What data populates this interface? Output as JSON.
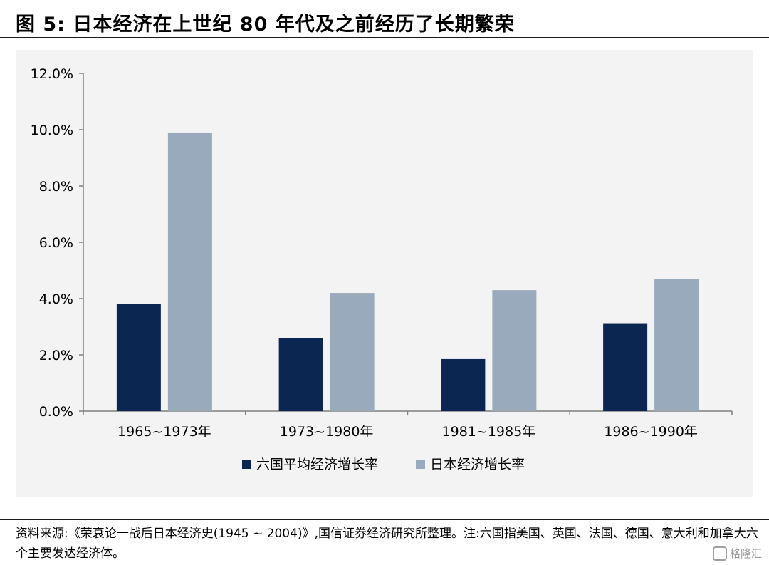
{
  "figure_title": "图 5:  日本经济在上世纪 80 年代及之前经历了长期繁荣",
  "source_note": "资料来源:《荣衰论一战后日本经济史(1945 ~ 2004)》,国信证券经济研究所整理。注:六国指美国、英国、法国、德国、意大利和加拿大六个主要发达经济体。",
  "watermark": "格隆汇",
  "colors": {
    "series_a": "#0c2652",
    "series_b": "#98aabb",
    "axis": "#7f7f7f",
    "panel": "#f3f3f3"
  },
  "chart_data": {
    "type": "bar",
    "title": "",
    "xlabel": "",
    "ylabel": "",
    "categories": [
      "1965~1973年",
      "1973~1980年",
      "1981~1985年",
      "1986~1990年"
    ],
    "series": [
      {
        "name": "六国平均经济增长率",
        "values": [
          3.8,
          2.6,
          1.85,
          3.1
        ]
      },
      {
        "name": "日本经济增长率",
        "values": [
          9.9,
          4.2,
          4.3,
          4.7
        ]
      }
    ],
    "ylim": [
      0,
      12
    ],
    "yticks": [
      "0.0%",
      "2.0%",
      "4.0%",
      "6.0%",
      "8.0%",
      "10.0%",
      "12.0%"
    ],
    "grid": false,
    "legend_position": "bottom-center"
  }
}
